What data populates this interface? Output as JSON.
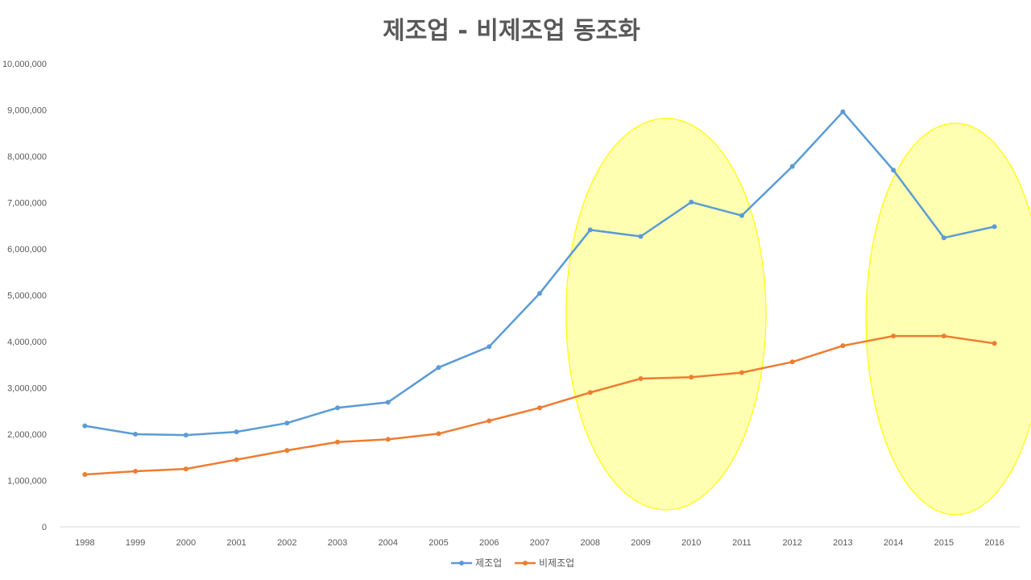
{
  "chart_data": {
    "type": "line",
    "title": "제조업 - 비제조업 동조화",
    "xlabel": "",
    "ylabel": "",
    "ylim": [
      0,
      10000000
    ],
    "yticks": [
      "0",
      "1,000,000",
      "2,000,000",
      "3,000,000",
      "4,000,000",
      "5,000,000",
      "6,000,000",
      "7,000,000",
      "8,000,000",
      "9,000,000",
      "10,000,000"
    ],
    "categories": [
      "1998",
      "1999",
      "2000",
      "2001",
      "2002",
      "2003",
      "2004",
      "2005",
      "2006",
      "2007",
      "2008",
      "2009",
      "2010",
      "2011",
      "2012",
      "2013",
      "2014",
      "2015",
      "2016"
    ],
    "legend_position": "bottom",
    "grid": false,
    "series": [
      {
        "name": "제조업",
        "color": "#5B9BD5",
        "values": [
          2180000,
          2000000,
          1980000,
          2050000,
          2240000,
          2570000,
          2690000,
          3440000,
          3890000,
          5040000,
          6410000,
          6270000,
          7010000,
          6720000,
          7780000,
          8960000,
          7700000,
          6240000,
          6480000
        ]
      },
      {
        "name": "비제조업",
        "color": "#ED7D31",
        "values": [
          1130000,
          1200000,
          1250000,
          1450000,
          1650000,
          1830000,
          1890000,
          2010000,
          2290000,
          2570000,
          2900000,
          3200000,
          3230000,
          3330000,
          3560000,
          3910000,
          4120000,
          4120000,
          3960000
        ]
      }
    ],
    "highlights": [
      {
        "from": "2008",
        "to": "2011",
        "color": "#FFFF66"
      },
      {
        "from": "2014",
        "to": "2016",
        "color": "#FFFF66"
      }
    ]
  }
}
